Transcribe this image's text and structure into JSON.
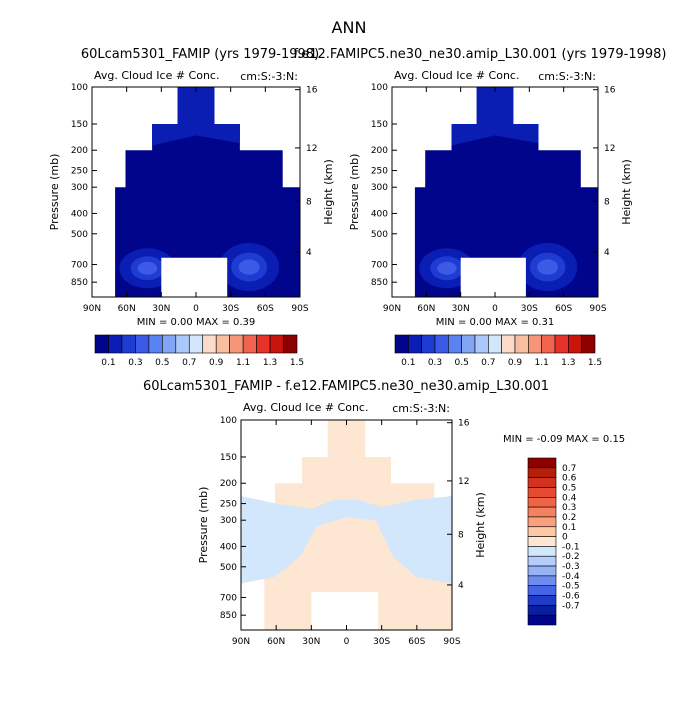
{
  "figure_title": "ANN",
  "chart_data": [
    {
      "type": "heatmap",
      "title": "60Lcam5301_FAMIP (yrs 1979-1998)",
      "subtitle": "Avg. Cloud Ice # Conc.",
      "units_label": "cm:S:-3:N:",
      "ylabel": "Pressure (mb)",
      "y2label": "Height (km)",
      "x_ticks": [
        "90N",
        "60N",
        "30N",
        "0",
        "30S",
        "60S",
        "90S"
      ],
      "y_ticks": [
        100,
        150,
        200,
        250,
        300,
        400,
        500,
        700,
        850
      ],
      "y2_ticks": [
        16,
        12,
        8,
        4
      ],
      "ylim": [
        100,
        1000
      ],
      "y_scale": "log",
      "stats": "MIN =    0.00  MAX =    0.39",
      "min": 0.0,
      "max": 0.39,
      "colorbar_levels": [
        0.1,
        0.2,
        0.3,
        0.4,
        0.5,
        0.6,
        0.7,
        0.8,
        0.9,
        1.0,
        1.1,
        1.2,
        1.3,
        1.4,
        1.5
      ],
      "colorbar_labels": [
        "0.1",
        "0.3",
        "0.5",
        "0.7",
        "0.9",
        "1.1",
        "1.3",
        "1.5"
      ],
      "colors": [
        "#00058c",
        "#0a1eb4",
        "#1e3cd2",
        "#3c5ae6",
        "#5a82f0",
        "#82a5f5",
        "#aac8fa",
        "#d2e6fc",
        "#fcdcc8",
        "#f9bea0",
        "#f59678",
        "#f06450",
        "#e63228",
        "#c8140a",
        "#8c0000"
      ]
    },
    {
      "type": "heatmap",
      "title": "f.e12.FAMIPC5.ne30_ne30.amip_L30.001 (yrs 1979-1998)",
      "subtitle": "Avg. Cloud Ice # Conc.",
      "units_label": "cm:S:-3:N:",
      "ylabel": "Pressure (mb)",
      "y2label": "Height (km)",
      "x_ticks": [
        "90N",
        "60N",
        "30N",
        "0",
        "30S",
        "60S",
        "90S"
      ],
      "y_ticks": [
        100,
        150,
        200,
        250,
        300,
        400,
        500,
        700,
        850
      ],
      "y2_ticks": [
        16,
        12,
        8,
        4
      ],
      "ylim": [
        100,
        1000
      ],
      "y_scale": "log",
      "stats": "MIN =    0.00  MAX =    0.31",
      "min": 0.0,
      "max": 0.31,
      "colorbar_levels": [
        0.1,
        0.2,
        0.3,
        0.4,
        0.5,
        0.6,
        0.7,
        0.8,
        0.9,
        1.0,
        1.1,
        1.2,
        1.3,
        1.4,
        1.5
      ],
      "colorbar_labels": [
        "0.1",
        "0.3",
        "0.5",
        "0.7",
        "0.9",
        "1.1",
        "1.3",
        "1.5"
      ]
    },
    {
      "type": "heatmap",
      "title": "60Lcam5301_FAMIP - f.e12.FAMIPC5.ne30_ne30.amip_L30.001",
      "subtitle": "Avg. Cloud Ice # Conc.",
      "units_label": "cm:S:-3:N:",
      "ylabel": "Pressure (mb)",
      "y2label": "Height (km)",
      "x_ticks": [
        "90N",
        "60N",
        "30N",
        "0",
        "30S",
        "60S",
        "90S"
      ],
      "y_ticks": [
        100,
        150,
        200,
        250,
        300,
        400,
        500,
        700,
        850
      ],
      "y2_ticks": [
        16,
        12,
        8,
        4
      ],
      "ylim": [
        100,
        1000
      ],
      "y_scale": "log",
      "stats": "MIN =   -0.09  MAX =    0.15",
      "min": -0.09,
      "max": 0.15,
      "colorbar_orientation": "vertical",
      "colorbar_labels": [
        "0.7",
        "0.6",
        "0.5",
        "0.4",
        "0.3",
        "0.2",
        "0.1",
        "0",
        "-0.1",
        "-0.2",
        "-0.3",
        "-0.4",
        "-0.5",
        "-0.6",
        "-0.7"
      ],
      "colors": [
        "#8c0000",
        "#b41e0a",
        "#d2321e",
        "#e64b32",
        "#f06446",
        "#f5825f",
        "#f9a07d",
        "#fdc8a5",
        "#fde6d2",
        "#d2e6fc",
        "#b4cdfa",
        "#96b4f5",
        "#6e8cf0",
        "#4664e6",
        "#1e3cc8",
        "#0a1ea0",
        "#00058c"
      ]
    }
  ]
}
